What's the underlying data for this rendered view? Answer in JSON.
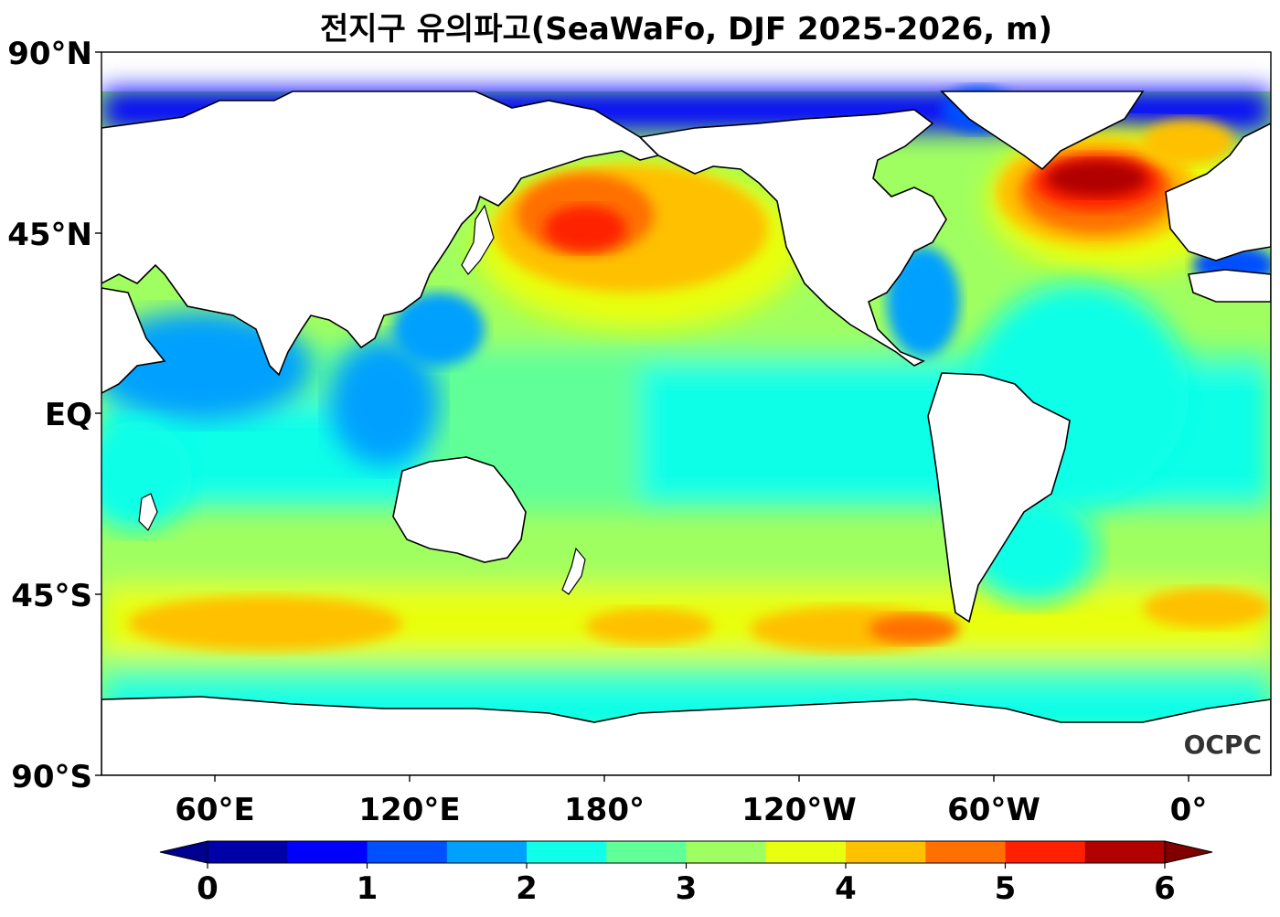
{
  "title": "전지구 유의파고(SeaWaFo, DJF 2025-2026, m)",
  "watermark": "OCPC",
  "map": {
    "lat_labels": [
      "90°N",
      "45°N",
      "EQ",
      "45°S",
      "90°S"
    ],
    "lon_labels": [
      "60°E",
      "120°E",
      "180°",
      "120°W",
      "60°W",
      "0°"
    ],
    "land_color": "#ffffff",
    "coastline_color": "#000000"
  },
  "colorbar": {
    "tick_labels": [
      "0",
      "1",
      "2",
      "3",
      "4",
      "5",
      "6"
    ],
    "min": 0,
    "max": 6,
    "step": 0.5,
    "under_color": "#00008f",
    "over_color": "#800000",
    "colors": [
      "#0000a8",
      "#0000ff",
      "#0050ff",
      "#00a0ff",
      "#10ffe8",
      "#60ff98",
      "#a0ff60",
      "#e8ff10",
      "#ffc000",
      "#ff7000",
      "#ff2000",
      "#b00000"
    ]
  }
}
